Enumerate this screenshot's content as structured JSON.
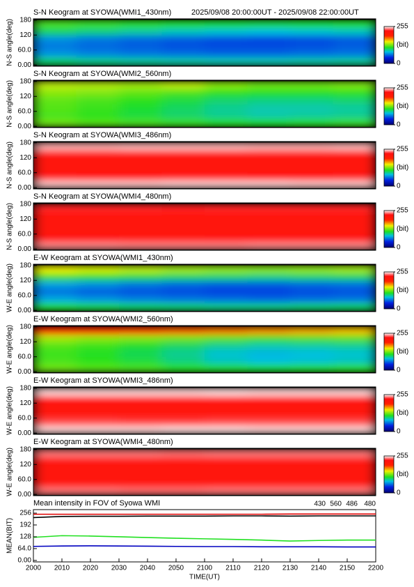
{
  "colormap": [
    {
      "value": 0,
      "color": "#000070"
    },
    {
      "value": 40,
      "color": "#0020e0"
    },
    {
      "value": 80,
      "color": "#00c0e0"
    },
    {
      "value": 110,
      "color": "#20e020"
    },
    {
      "value": 150,
      "color": "#f0f000"
    },
    {
      "value": 190,
      "color": "#ff2000"
    },
    {
      "value": 225,
      "color": "#ff1010"
    },
    {
      "value": 255,
      "color": "#ffffff"
    }
  ],
  "chart_data": [
    {
      "type": "heatmap",
      "title": "S-N Keogram at SYOWA(WMI1_430nm)",
      "subtitle": "2025/09/08 20:00:00UT - 2025/09/08 22:00:00UT",
      "ylabel": "N-S angle(deg)",
      "xlim": [
        0,
        120
      ],
      "x_bins": [
        0,
        15,
        30,
        45,
        60,
        75,
        90,
        105,
        120
      ],
      "ylim": [
        -5,
        185
      ],
      "y_bins": [
        0,
        30,
        60,
        90,
        120,
        150,
        180
      ],
      "yticks": [
        {
          "value": 0,
          "label": "0.00"
        },
        {
          "value": 60,
          "label": "60.0"
        },
        120,
        180
      ],
      "z": [
        [
          100,
          95,
          92,
          90,
          88,
          88,
          90,
          92
        ],
        [
          70,
          65,
          62,
          60,
          58,
          58,
          60,
          62
        ],
        [
          62,
          58,
          55,
          52,
          50,
          50,
          52,
          55
        ],
        [
          68,
          62,
          58,
          55,
          52,
          50,
          52,
          55
        ],
        [
          100,
          95,
          90,
          85,
          82,
          80,
          82,
          85
        ],
        [
          118,
          115,
          112,
          110,
          108,
          106,
          108,
          110
        ]
      ],
      "colorbar": {
        "lim": [
          0,
          255
        ],
        "ticks": [
          0,
          255
        ],
        "label": "(bit)"
      }
    },
    {
      "type": "heatmap",
      "title": "S-N Keogram at SYOWA(WMI2_560nm)",
      "ylabel": "N-S angle(deg)",
      "xlim": [
        0,
        120
      ],
      "x_bins": [
        0,
        15,
        30,
        45,
        60,
        75,
        90,
        105,
        120
      ],
      "ylim": [
        -5,
        185
      ],
      "y_bins": [
        0,
        30,
        60,
        90,
        120,
        150,
        180
      ],
      "yticks": [
        {
          "value": 0,
          "label": "0.00"
        },
        {
          "value": 60,
          "label": "60.0"
        },
        120,
        180
      ],
      "z": [
        [
          125,
          120,
          118,
          115,
          112,
          110,
          112,
          115
        ],
        [
          118,
          112,
          105,
          98,
          92,
          88,
          90,
          92
        ],
        [
          120,
          115,
          108,
          100,
          92,
          88,
          88,
          90
        ],
        [
          122,
          118,
          112,
          105,
          98,
          95,
          95,
          98
        ],
        [
          130,
          128,
          122,
          118,
          112,
          110,
          110,
          112
        ],
        [
          140,
          138,
          135,
          140,
          130,
          125,
          125,
          128
        ]
      ],
      "colorbar": {
        "lim": [
          0,
          255
        ],
        "ticks": [
          0,
          255
        ],
        "label": "(bit)"
      }
    },
    {
      "type": "heatmap",
      "title": "S-N Keogram at SYOWA(WMI3_486nm)",
      "ylabel": "N-S angle(deg)",
      "xlim": [
        0,
        120
      ],
      "x_bins": [
        0,
        15,
        30,
        45,
        60,
        75,
        90,
        105,
        120
      ],
      "ylim": [
        -5,
        185
      ],
      "y_bins": [
        0,
        30,
        60,
        90,
        120,
        150,
        180
      ],
      "yticks": [
        {
          "value": 0,
          "label": "0.00"
        },
        {
          "value": 60,
          "label": "60.0"
        },
        120,
        180
      ],
      "z": [
        [
          248,
          248,
          248,
          249,
          249,
          249,
          248,
          248
        ],
        [
          226,
          225,
          225,
          226,
          226,
          225,
          225,
          226
        ],
        [
          212,
          212,
          213,
          213,
          213,
          212,
          212,
          213
        ],
        [
          210,
          210,
          211,
          211,
          211,
          210,
          210,
          211
        ],
        [
          218,
          218,
          219,
          219,
          219,
          218,
          218,
          219
        ],
        [
          245,
          245,
          246,
          246,
          246,
          245,
          245,
          246
        ]
      ],
      "colorbar": {
        "lim": [
          0,
          255
        ],
        "ticks": [
          0,
          255
        ],
        "label": "(bit)"
      }
    },
    {
      "type": "heatmap",
      "title": "S-N Keogram at SYOWA(WMI4_480nm)",
      "ylabel": "N-S angle(deg)",
      "xlim": [
        0,
        120
      ],
      "x_bins": [
        0,
        15,
        30,
        45,
        60,
        75,
        90,
        105,
        120
      ],
      "ylim": [
        -5,
        185
      ],
      "y_bins": [
        0,
        30,
        60,
        90,
        120,
        150,
        180
      ],
      "yticks": [
        {
          "value": 0,
          "label": "0.00"
        },
        {
          "value": 60,
          "label": "60.0"
        },
        120,
        180
      ],
      "z": [
        [
          240,
          240,
          239,
          239,
          239,
          240,
          240,
          240
        ],
        [
          222,
          222,
          221,
          221,
          222,
          222,
          222,
          222
        ],
        [
          212,
          212,
          211,
          211,
          212,
          212,
          212,
          212
        ],
        [
          210,
          210,
          209,
          209,
          210,
          210,
          210,
          210
        ],
        [
          215,
          215,
          214,
          214,
          215,
          215,
          215,
          215
        ],
        [
          228,
          228,
          228,
          227,
          228,
          228,
          228,
          228
        ]
      ],
      "colorbar": {
        "lim": [
          0,
          255
        ],
        "ticks": [
          0,
          255
        ],
        "label": "(bit)"
      }
    },
    {
      "type": "heatmap",
      "title": "E-W Keogram at SYOWA(WMI1_430nm)",
      "ylabel": "W-E angle(deg)",
      "xlim": [
        0,
        120
      ],
      "x_bins": [
        0,
        15,
        30,
        45,
        60,
        75,
        90,
        105,
        120
      ],
      "ylim": [
        -5,
        185
      ],
      "y_bins": [
        0,
        30,
        60,
        90,
        120,
        150,
        180
      ],
      "yticks": [
        {
          "value": 0,
          "label": "0.00"
        },
        {
          "value": 60,
          "label": "60.0"
        },
        120,
        180
      ],
      "z": [
        [
          110,
          105,
          100,
          98,
          95,
          95,
          98,
          100
        ],
        [
          75,
          70,
          65,
          62,
          60,
          58,
          60,
          62
        ],
        [
          60,
          55,
          52,
          50,
          48,
          48,
          50,
          52
        ],
        [
          72,
          68,
          62,
          58,
          55,
          55,
          58,
          60
        ],
        [
          115,
          110,
          105,
          100,
          98,
          95,
          98,
          100
        ],
        [
          150,
          145,
          140,
          135,
          132,
          130,
          132,
          135
        ]
      ],
      "colorbar": {
        "lim": [
          0,
          255
        ],
        "ticks": [
          0,
          255
        ],
        "label": "(bit)"
      }
    },
    {
      "type": "heatmap",
      "title": "E-W Keogram at SYOWA(WMI2_560nm)",
      "ylabel": "W-E angle(deg)",
      "xlim": [
        0,
        120
      ],
      "x_bins": [
        0,
        15,
        30,
        45,
        60,
        75,
        90,
        105,
        120
      ],
      "ylim": [
        -5,
        185
      ],
      "y_bins": [
        0,
        30,
        60,
        90,
        120,
        150,
        180
      ],
      "yticks": [
        {
          "value": 0,
          "label": "0.00"
        },
        {
          "value": 60,
          "label": "60.0"
        },
        120,
        180
      ],
      "z": [
        [
          125,
          120,
          118,
          112,
          110,
          108,
          110,
          112
        ],
        [
          118,
          112,
          105,
          95,
          85,
          80,
          82,
          85
        ],
        [
          115,
          110,
          102,
          92,
          82,
          78,
          80,
          82
        ],
        [
          120,
          115,
          108,
          100,
          92,
          88,
          90,
          92
        ],
        [
          135,
          130,
          128,
          125,
          120,
          115,
          118,
          120
        ],
        [
          195,
          190,
          185,
          180,
          175,
          170,
          165,
          160
        ]
      ],
      "colorbar": {
        "lim": [
          0,
          255
        ],
        "ticks": [
          0,
          255
        ],
        "label": "(bit)"
      }
    },
    {
      "type": "heatmap",
      "title": "E-W Keogram at SYOWA(WMI3_486nm)",
      "ylabel": "W-E angle(deg)",
      "xlim": [
        0,
        120
      ],
      "x_bins": [
        0,
        15,
        30,
        45,
        60,
        75,
        90,
        105,
        120
      ],
      "ylim": [
        -5,
        185
      ],
      "y_bins": [
        0,
        30,
        60,
        90,
        120,
        150,
        180
      ],
      "yticks": [
        {
          "value": 0,
          "label": "0.00"
        },
        {
          "value": 60,
          "label": "60.0"
        },
        120,
        180
      ],
      "z": [
        [
          250,
          250,
          250,
          251,
          251,
          250,
          250,
          250
        ],
        [
          232,
          232,
          231,
          231,
          232,
          232,
          232,
          232
        ],
        [
          212,
          212,
          211,
          211,
          212,
          212,
          212,
          212
        ],
        [
          210,
          210,
          209,
          209,
          210,
          210,
          210,
          210
        ],
        [
          225,
          225,
          224,
          224,
          225,
          225,
          225,
          225
        ],
        [
          250,
          250,
          250,
          250,
          251,
          250,
          250,
          250
        ]
      ],
      "colorbar": {
        "lim": [
          0,
          255
        ],
        "ticks": [
          0,
          255
        ],
        "label": "(bit)"
      }
    },
    {
      "type": "heatmap",
      "title": "E-W Keogram at SYOWA(WMI4_480nm)",
      "ylabel": "W-E angle(deg)",
      "xlim": [
        0,
        120
      ],
      "x_bins": [
        0,
        15,
        30,
        45,
        60,
        75,
        90,
        105,
        120
      ],
      "ylim": [
        -5,
        185
      ],
      "y_bins": [
        0,
        30,
        60,
        90,
        120,
        150,
        180
      ],
      "yticks": [
        {
          "value": 0,
          "label": "0.00"
        },
        {
          "value": 60,
          "label": "60.0"
        },
        120,
        180
      ],
      "z": [
        [
          238,
          238,
          237,
          237,
          238,
          238,
          238,
          238
        ],
        [
          215,
          215,
          214,
          214,
          215,
          215,
          215,
          215
        ],
        [
          208,
          208,
          207,
          207,
          208,
          208,
          208,
          208
        ],
        [
          210,
          210,
          209,
          209,
          210,
          210,
          210,
          210
        ],
        [
          220,
          220,
          219,
          219,
          220,
          220,
          220,
          220
        ],
        [
          238,
          238,
          238,
          237,
          238,
          238,
          238,
          238
        ]
      ],
      "colorbar": {
        "lim": [
          0,
          255
        ],
        "ticks": [
          0,
          255
        ],
        "label": "(bit)"
      }
    },
    {
      "type": "line",
      "title": "Mean intensity in FOV of Syowa WMI",
      "ylabel": "MEAN(BIT)",
      "xlabel": "TIME(UT)",
      "xlim": [
        0,
        120
      ],
      "ylim": [
        -8,
        275
      ],
      "yticks": [
        {
          "value": 0,
          "label": "0.00"
        },
        {
          "value": 64,
          "label": "64.0"
        },
        128,
        192,
        256
      ],
      "xticks": [
        {
          "value": 0,
          "label": "2000"
        },
        {
          "value": 10,
          "label": "2010"
        },
        {
          "value": 20,
          "label": "2020"
        },
        {
          "value": 30,
          "label": "2030"
        },
        {
          "value": 40,
          "label": "2040"
        },
        {
          "value": 50,
          "label": "2050"
        },
        {
          "value": 60,
          "label": "2100"
        },
        {
          "value": 70,
          "label": "2110"
        },
        {
          "value": 80,
          "label": "2120"
        },
        {
          "value": 90,
          "label": "2130"
        },
        {
          "value": 100,
          "label": "2140"
        },
        {
          "value": 110,
          "label": "2150"
        },
        {
          "value": 120,
          "label": "2200"
        }
      ],
      "x": [
        0,
        10,
        20,
        30,
        40,
        50,
        60,
        70,
        80,
        90,
        100,
        110,
        120
      ],
      "series": [
        {
          "name": "430",
          "color": "#0000c0",
          "values": [
            76,
            78,
            79,
            78,
            77,
            76,
            75,
            75,
            74,
            74,
            74,
            73,
            73
          ]
        },
        {
          "name": "560",
          "color": "#20e020",
          "values": [
            125,
            134,
            132,
            128,
            124,
            120,
            117,
            114,
            110,
            105,
            108,
            110,
            110
          ]
        },
        {
          "name": "486",
          "color": "#e00000",
          "values": [
            250,
            250,
            250,
            250,
            250,
            250,
            250,
            250,
            250,
            251,
            251,
            251,
            251
          ]
        },
        {
          "name": "480",
          "color": "#000000",
          "values": [
            232,
            238,
            239,
            239,
            240,
            240,
            240,
            241,
            241,
            240,
            241,
            241,
            241
          ]
        }
      ]
    }
  ]
}
